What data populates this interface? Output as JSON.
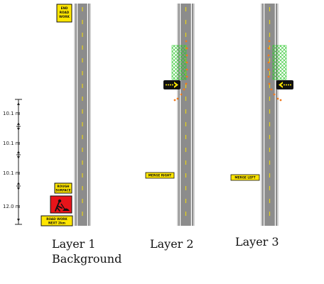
{
  "measurements": [
    "10.1 m",
    "10.1 m",
    "10.1 m",
    "12.0 m"
  ],
  "layer1": {
    "caption": "Layer 1",
    "subcaption": "Background",
    "sign_end_road_work": [
      "END",
      "ROAD",
      "WORK"
    ],
    "sign_rough_surface": [
      "ROUGH",
      "SURFACE"
    ],
    "sign_road_work_next": [
      "ROAD WORK",
      "NEXT 2km"
    ]
  },
  "layer2": {
    "caption": "Layer 2",
    "sign_merge": "MERGE RIGHT"
  },
  "layer3": {
    "caption": "Layer 3",
    "sign_merge": "MERGE LEFT"
  },
  "colors": {
    "road": "#8c8c8c",
    "edge_line": "#ffffff",
    "center_dash": "#e6d21a",
    "sign_yellow": "#ffe600",
    "worker_sign": "#e8141a",
    "cone": "#f07a1e",
    "hatch": "#33cc33"
  }
}
